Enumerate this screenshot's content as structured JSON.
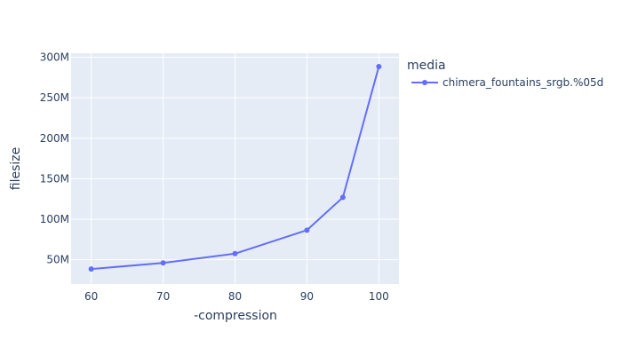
{
  "chart_data": {
    "type": "line",
    "title": "",
    "xlabel": "-compression",
    "ylabel": "filesize",
    "xlim": [
      57.2,
      102.8
    ],
    "ylim": [
      20000000,
      305000000
    ],
    "x_ticks": [
      60,
      70,
      80,
      90,
      100
    ],
    "x_tick_labels": [
      "60",
      "70",
      "80",
      "90",
      "100"
    ],
    "y_ticks": [
      50000000,
      100000000,
      150000000,
      200000000,
      250000000,
      300000000
    ],
    "y_tick_labels": [
      "50M",
      "100M",
      "150M",
      "200M",
      "250M",
      "300M"
    ],
    "grid": true,
    "legend": {
      "title": "media",
      "position": "right"
    },
    "series": [
      {
        "name": "chimera_fountains_srgb.%05d",
        "color": "#636efa",
        "mode": "lines+markers",
        "x": [
          60,
          70,
          80,
          90,
          95,
          100
        ],
        "y": [
          38500000,
          46000000,
          57500000,
          86500000,
          127000000,
          288500000
        ]
      }
    ]
  },
  "colors": {
    "plot_background": "#e5ecf6",
    "grid": "#ffffff",
    "text": "#2a3f5f"
  }
}
